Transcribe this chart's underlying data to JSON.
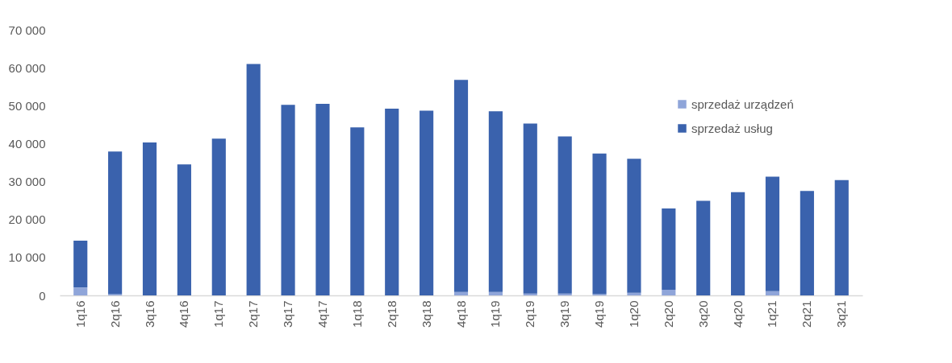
{
  "chart_data": {
    "type": "bar",
    "stacked": true,
    "categories": [
      "1q16",
      "2q16",
      "3q16",
      "4q16",
      "1q17",
      "2q17",
      "3q17",
      "4q17",
      "1q18",
      "2q18",
      "3q18",
      "4q18",
      "1q19",
      "2q19",
      "3q19",
      "4q19",
      "1q20",
      "2q20",
      "3q20",
      "4q20",
      "1q21",
      "2q21",
      "3q21"
    ],
    "series": [
      {
        "name": "sprzedaż urządzeń",
        "color": "#8fa5d9",
        "values": [
          2100,
          300,
          0,
          0,
          0,
          0,
          0,
          0,
          0,
          0,
          0,
          900,
          900,
          500,
          500,
          300,
          700,
          1500,
          0,
          0,
          1100,
          0,
          0
        ]
      },
      {
        "name": "sprzedaż usług",
        "color": "#3a62ad",
        "values": [
          12300,
          37600,
          40300,
          34500,
          41300,
          61000,
          50200,
          50500,
          44300,
          49200,
          48700,
          55900,
          47600,
          44800,
          41400,
          37100,
          35300,
          21400,
          24900,
          27200,
          30200,
          27500,
          30400
        ]
      }
    ],
    "ylim": [
      0,
      70000
    ],
    "yticks": [
      0,
      {
        "value": 10000,
        "label": "10 000"
      },
      {
        "value": 20000,
        "label": "20 000"
      },
      {
        "value": 30000,
        "label": "30 000"
      },
      {
        "value": 40000,
        "label": "40 000"
      },
      {
        "value": 50000,
        "label": "50 000"
      },
      {
        "value": 60000,
        "label": "60 000"
      },
      {
        "value": 70000,
        "label": "70 000"
      }
    ],
    "grid": false,
    "legend": "top right"
  }
}
